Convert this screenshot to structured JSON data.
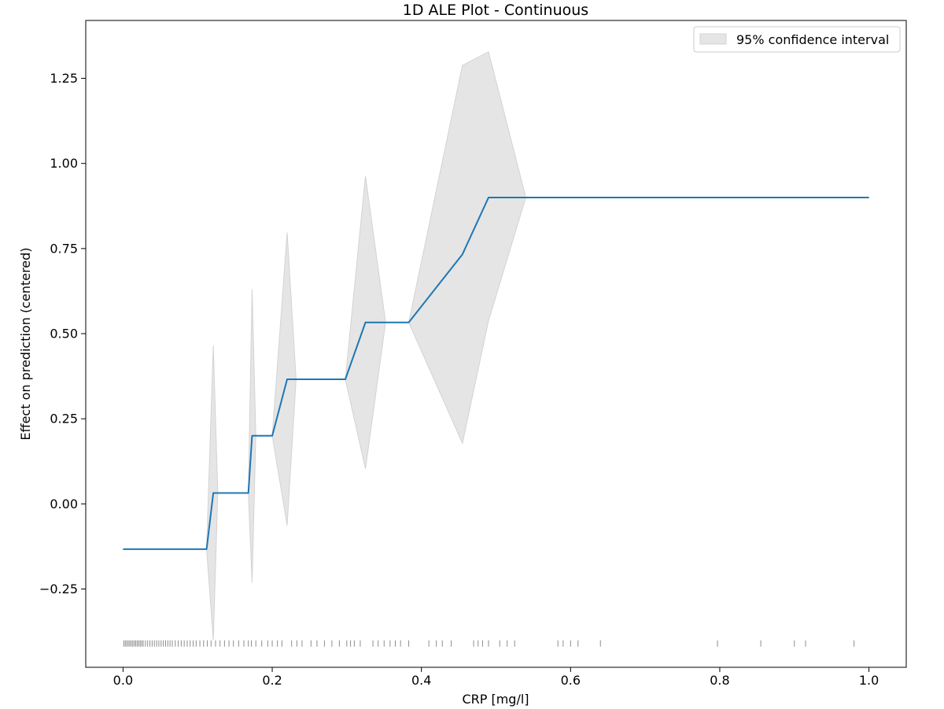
{
  "chart_data": {
    "type": "line",
    "title": "1D ALE Plot - Continuous",
    "xlabel": "CRP [mg/l]",
    "ylabel": "Effect on prediction (centered)",
    "xlim": [
      -0.05,
      1.05
    ],
    "ylim": [
      -0.48,
      1.42
    ],
    "x_ticks": [
      0.0,
      0.2,
      0.4,
      0.6,
      0.8,
      1.0
    ],
    "x_tick_labels": [
      "0.0",
      "0.2",
      "0.4",
      "0.6",
      "0.8",
      "1.0"
    ],
    "y_ticks": [
      -0.25,
      0.0,
      0.25,
      0.5,
      0.75,
      1.0,
      1.25
    ],
    "y_tick_labels": [
      "−0.25",
      "0.00",
      "0.25",
      "0.50",
      "0.75",
      "1.00",
      "1.25"
    ],
    "grid": false,
    "legend": {
      "placement": "top-right",
      "entries": [
        "95% confidence interval"
      ]
    },
    "colors": {
      "line": "#1f77b4",
      "band": "#e5e5e5",
      "band_edge": "#d3d3d3",
      "rug": "#000000"
    },
    "series": [
      {
        "type": "line",
        "x": [
          0.0,
          0.112,
          0.121,
          0.168,
          0.173,
          0.2,
          0.22,
          0.298,
          0.325,
          0.383,
          0.455,
          0.49,
          0.54,
          1.0
        ],
        "y": [
          -0.133,
          -0.133,
          0.032,
          0.032,
          0.2,
          0.2,
          0.366,
          0.366,
          0.533,
          0.533,
          0.733,
          0.9,
          0.9,
          0.9
        ]
      },
      {
        "name": "95% confidence interval",
        "type": "band",
        "x": [
          0.112,
          0.121,
          0.127,
          0.168,
          0.173,
          0.178,
          0.2,
          0.22,
          0.232,
          0.298,
          0.325,
          0.352,
          0.383,
          0.455,
          0.49,
          0.54
        ],
        "lower": [
          -0.133,
          -0.4,
          0.032,
          0.032,
          -0.23,
          0.2,
          0.2,
          -0.063,
          0.366,
          0.366,
          0.103,
          0.533,
          0.533,
          0.178,
          0.538,
          0.9
        ],
        "upper": [
          -0.133,
          0.466,
          0.032,
          0.032,
          0.63,
          0.2,
          0.2,
          0.797,
          0.366,
          0.366,
          0.963,
          0.533,
          0.533,
          1.288,
          1.328,
          0.9
        ]
      }
    ],
    "rug_y": -0.41,
    "rug_x": [
      0.001,
      0.003,
      0.005,
      0.007,
      0.009,
      0.011,
      0.013,
      0.015,
      0.017,
      0.019,
      0.021,
      0.023,
      0.025,
      0.027,
      0.03,
      0.033,
      0.036,
      0.039,
      0.042,
      0.045,
      0.048,
      0.051,
      0.054,
      0.057,
      0.06,
      0.063,
      0.066,
      0.07,
      0.074,
      0.078,
      0.082,
      0.086,
      0.09,
      0.094,
      0.098,
      0.103,
      0.108,
      0.113,
      0.118,
      0.124,
      0.13,
      0.136,
      0.142,
      0.148,
      0.155,
      0.162,
      0.168,
      0.172,
      0.178,
      0.186,
      0.194,
      0.2,
      0.207,
      0.213,
      0.226,
      0.233,
      0.24,
      0.252,
      0.26,
      0.27,
      0.28,
      0.29,
      0.3,
      0.305,
      0.31,
      0.318,
      0.335,
      0.342,
      0.35,
      0.358,
      0.365,
      0.372,
      0.383,
      0.41,
      0.42,
      0.428,
      0.44,
      0.47,
      0.476,
      0.482,
      0.49,
      0.505,
      0.515,
      0.525,
      0.583,
      0.59,
      0.6,
      0.61,
      0.64,
      0.797,
      0.855,
      0.9,
      0.915,
      0.98
    ]
  }
}
